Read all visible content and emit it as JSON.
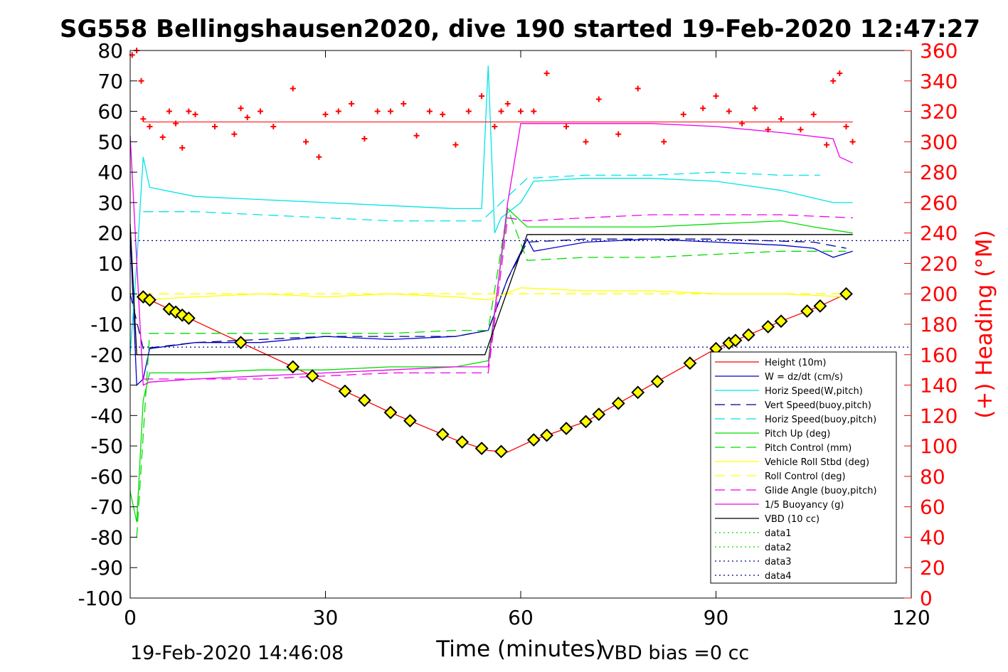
{
  "chart_data": {
    "type": "line",
    "title": "SG558 Bellingshausen2020, dive 190 started 19-Feb-2020 12:47:27",
    "xlabel": "Time (minutes)",
    "ylabel_right": "(+) Heading (°M)",
    "xlim": [
      0,
      120
    ],
    "ylim_left": [
      -100,
      80
    ],
    "ylim_right": [
      0,
      360
    ],
    "xticks": [
      0,
      30,
      60,
      90,
      120
    ],
    "yticks_left": [
      -100,
      -90,
      -80,
      -70,
      -60,
      -50,
      -40,
      -30,
      -20,
      -10,
      0,
      10,
      20,
      30,
      40,
      50,
      60,
      70,
      80
    ],
    "yticks_right": [
      0,
      20,
      40,
      60,
      80,
      100,
      120,
      140,
      160,
      180,
      200,
      220,
      240,
      260,
      280,
      300,
      320,
      340,
      360
    ],
    "footer_left": "19-Feb-2020 14:46:08",
    "footer_right": "VBD bias =0 cc",
    "grid": false,
    "legend_position": "lower-right",
    "series": [
      {
        "name": "Height (10m)",
        "color": "#ff0000",
        "style": "solid",
        "x": [
          2,
          10,
          20,
          30,
          40,
          50,
          55,
          58,
          62,
          70,
          80,
          90,
          100,
          106,
          110
        ],
        "y": [
          -1,
          -9,
          -19,
          -29,
          -39,
          -48,
          -51.5,
          -52,
          -48,
          -42,
          -30,
          -18,
          -9,
          -4,
          0
        ]
      },
      {
        "name": "W = dz/dt (cm/s)",
        "color": "#0000cc",
        "style": "solid",
        "x": [
          0,
          1,
          2,
          3,
          10,
          20,
          30,
          40,
          50,
          55,
          58,
          61,
          62,
          70,
          80,
          90,
          100,
          105,
          108,
          111
        ],
        "y": [
          20,
          -30,
          -28,
          -18,
          -16,
          -16,
          -14,
          -15,
          -14,
          -12,
          5,
          18,
          14,
          17,
          18,
          17,
          16,
          15,
          12,
          14
        ]
      },
      {
        "name": "Horiz Speed(W,pitch)",
        "color": "#00e5e5",
        "style": "solid",
        "x": [
          0,
          1,
          2,
          3,
          10,
          20,
          30,
          40,
          50,
          54,
          55,
          56,
          57,
          60,
          62,
          70,
          80,
          90,
          100,
          108,
          111
        ],
        "y": [
          -20,
          10,
          45,
          35,
          32,
          31,
          30,
          29,
          28,
          28,
          75,
          20,
          25,
          30,
          37,
          38,
          38,
          37,
          34,
          30,
          30
        ]
      },
      {
        "name": "Vert Speed(buoy,pitch)",
        "color": "#00008b",
        "style": "dash",
        "x": [
          0,
          2,
          10,
          30,
          50,
          55,
          58,
          61,
          70,
          90,
          105,
          110
        ],
        "y": [
          0,
          -18,
          -16,
          -14,
          -14,
          -12,
          5,
          17,
          18,
          18,
          17,
          15
        ]
      },
      {
        "name": "Horiz Speed(buoy,pitch)",
        "color": "#00e5e5",
        "style": "dash",
        "x": [
          2,
          10,
          20,
          30,
          40,
          50,
          54,
          61,
          70,
          80,
          90,
          100,
          106
        ],
        "y": [
          27,
          27,
          26,
          25,
          24,
          24,
          24,
          38,
          39,
          39,
          40,
          39,
          39
        ]
      },
      {
        "name": "Pitch Up (deg)",
        "color": "#00dd00",
        "style": "solid",
        "x": [
          0,
          1,
          2,
          3,
          10,
          20,
          30,
          40,
          50,
          55,
          58,
          61,
          70,
          80,
          90,
          100,
          105,
          111
        ],
        "y": [
          -65,
          -75,
          -35,
          -26,
          -26,
          -25,
          -25,
          -24,
          -24,
          -22,
          28,
          22,
          22,
          22,
          23,
          24,
          22,
          20
        ]
      },
      {
        "name": "Pitch Control (mm)",
        "color": "#00dd00",
        "style": "dash",
        "x": [
          1,
          3,
          10,
          20,
          30,
          40,
          50,
          55,
          58,
          61,
          70,
          80,
          90,
          100,
          110
        ],
        "y": [
          -80,
          -13,
          -13,
          -13,
          -13,
          -13,
          -12,
          -12,
          28,
          11,
          12,
          12,
          13,
          14,
          14
        ]
      },
      {
        "name": "Vehicle Roll Stbd (deg)",
        "color": "#ffff00",
        "style": "solid",
        "x": [
          2,
          10,
          20,
          30,
          40,
          50,
          55,
          60,
          70,
          80,
          90,
          100,
          110
        ],
        "y": [
          -2,
          -1,
          0,
          -1,
          0,
          -1,
          -2,
          2,
          1,
          1,
          0,
          0,
          -1
        ]
      },
      {
        "name": "Roll Control (deg)",
        "color": "#ffff00",
        "style": "dash",
        "x": [
          2,
          20,
          40,
          55,
          60,
          80,
          100,
          110
        ],
        "y": [
          0,
          0,
          0,
          0,
          0,
          0,
          0,
          0
        ]
      },
      {
        "name": "Glide Angle (buoy,pitch)",
        "color": "#ee00ee",
        "style": "dash",
        "x": [
          2,
          10,
          20,
          30,
          40,
          50,
          55,
          58,
          61,
          70,
          80,
          90,
          100,
          111
        ],
        "y": [
          -28,
          -28,
          -28,
          -27,
          -26,
          -26,
          -26,
          25,
          24,
          25,
          26,
          26,
          26,
          25
        ]
      },
      {
        "name": "1/5 Buoyancy (g)",
        "color": "#ee00ee",
        "style": "solid",
        "x": [
          0,
          2,
          3,
          10,
          20,
          30,
          40,
          50,
          55,
          58,
          60,
          70,
          80,
          90,
          100,
          108,
          109,
          111
        ],
        "y": [
          52,
          -30,
          -29,
          -28,
          -27,
          -26,
          -25,
          -24,
          -24,
          30,
          56,
          56,
          56,
          55,
          53,
          51,
          45,
          43
        ]
      },
      {
        "name": "VBD (10 cc)",
        "color": "#000000",
        "style": "solid",
        "x": [
          0,
          1,
          2,
          54.5,
          61,
          111
        ],
        "y": [
          23,
          -20,
          -20,
          -20,
          19.5,
          19.5
        ]
      },
      {
        "name": "data1",
        "color": "#00dd00",
        "style": "dot",
        "x": [
          0,
          0
        ],
        "y": [
          0,
          0
        ]
      },
      {
        "name": "data2",
        "color": "#00dd00",
        "style": "dot",
        "x": [
          0,
          0
        ],
        "y": [
          0,
          0
        ]
      },
      {
        "name": "data3",
        "color": "#000080",
        "style": "dot",
        "x": [
          0,
          120
        ],
        "y": [
          17.5,
          17.5
        ]
      },
      {
        "name": "data4",
        "color": "#000080",
        "style": "dot",
        "x": [
          0,
          120
        ],
        "y": [
          -17.5,
          -17.5
        ]
      }
    ],
    "heading": {
      "axis": "right",
      "color": "#ff0000",
      "marker": "+",
      "reference": 313,
      "x": [
        0.3,
        1,
        1.7,
        2,
        3,
        5,
        6,
        7,
        8,
        9,
        10,
        13,
        16,
        17,
        18,
        20,
        22,
        25,
        27,
        29,
        30,
        32,
        34,
        36,
        38,
        40,
        42,
        44,
        46,
        48,
        50,
        52,
        54,
        56,
        57,
        58,
        60,
        62,
        64,
        67,
        70,
        72,
        75,
        78,
        82,
        85,
        88,
        90,
        92,
        94,
        96,
        98,
        100,
        103,
        105,
        107,
        108,
        109,
        110,
        111
      ],
      "y": [
        357,
        360,
        340,
        315,
        310,
        303,
        320,
        312,
        296,
        320,
        318,
        310,
        305,
        322,
        316,
        320,
        310,
        335,
        300,
        290,
        318,
        320,
        325,
        302,
        320,
        320,
        325,
        304,
        320,
        318,
        298,
        320,
        330,
        310,
        320,
        325,
        320,
        320,
        345,
        310,
        300,
        328,
        305,
        335,
        300,
        318,
        322,
        330,
        320,
        312,
        322,
        308,
        315,
        308,
        318,
        298,
        340,
        345,
        310,
        300
      ]
    },
    "diamond_markers_x": [
      2,
      3,
      6,
      7,
      8,
      9,
      17,
      25,
      28,
      33,
      36,
      40,
      43,
      48,
      51,
      54,
      57,
      62,
      64,
      67,
      70,
      72,
      75,
      78,
      81,
      86,
      90,
      92,
      93,
      95,
      98,
      100,
      104,
      106,
      110
    ]
  }
}
